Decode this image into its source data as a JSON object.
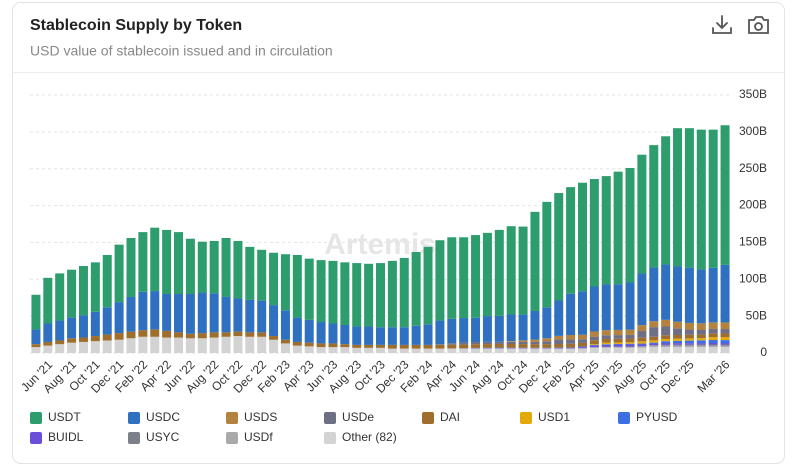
{
  "chart_data": {
    "type": "stacked_bar",
    "title": "Stablecoin Supply by Token",
    "subtitle": "USD value of stablecoin issued and in circulation",
    "watermark": "Artemis",
    "categories": [
      null,
      "Jun '21",
      null,
      "Aug '21",
      null,
      "Oct '21",
      null,
      "Dec '21",
      null,
      "Feb '22",
      null,
      "Apr '22",
      null,
      "Jun '22",
      null,
      "Aug '22",
      null,
      "Oct '22",
      null,
      "Dec '22",
      null,
      "Feb '23",
      null,
      "Apr '23",
      null,
      "Jun '23",
      null,
      "Aug '23",
      null,
      "Oct '23",
      null,
      "Dec '23",
      null,
      "Feb '24",
      null,
      "Apr '24",
      null,
      "Jun '24",
      null,
      "Aug '24",
      null,
      "Oct '24",
      null,
      "Dec '24",
      null,
      "Feb '25",
      null,
      "Apr '25",
      null,
      "Jun '25",
      null,
      "Aug '25",
      null,
      "Oct '25",
      null,
      "Dec '25",
      null,
      null,
      "Mar '26"
    ],
    "series": [
      {
        "name": "USDT",
        "color": "#2e9d6e",
        "values": [
          47,
          62,
          64,
          65,
          67,
          67,
          71,
          78,
          80,
          81,
          86,
          87,
          84,
          75,
          69,
          71,
          80,
          78,
          72,
          69,
          71,
          76,
          85,
          83,
          84,
          85,
          85,
          86,
          85,
          87,
          90,
          94,
          100,
          105,
          109,
          110.7,
          109.6,
          112.1,
          112.9,
          116.7,
          119.8,
          119.4,
          134.5,
          143,
          145.8,
          144.6,
          147.3,
          145.8,
          147,
          152.7,
          155.4,
          161.2,
          165.9,
          174,
          187.6,
          189.2,
          189.8,
          187.4,
          189.5
        ]
      },
      {
        "name": "USDC",
        "color": "#2f70c0",
        "values": [
          20,
          25,
          27,
          28,
          30,
          33,
          37,
          42,
          47,
          52,
          52,
          50,
          52,
          54,
          55,
          53,
          48,
          45,
          44,
          43,
          42,
          40,
          33,
          31,
          29,
          27,
          26,
          25,
          25,
          24,
          24,
          24,
          26,
          28,
          32,
          33,
          33,
          33,
          35,
          35,
          36,
          35,
          39,
          42,
          48,
          56,
          59,
          61,
          62,
          62,
          64,
          70,
          73,
          75,
          75,
          75,
          73,
          74,
          78
        ]
      },
      {
        "name": "USDS",
        "color": "#b3823f",
        "values": [
          0,
          0,
          0,
          0,
          0,
          0,
          0,
          0,
          0,
          0,
          0,
          0,
          0,
          0,
          0,
          0,
          0,
          0,
          0,
          0,
          0,
          0,
          0,
          0,
          0,
          0,
          0,
          0,
          0,
          0,
          0,
          0,
          0,
          0,
          0,
          0,
          0,
          0,
          0,
          0,
          1,
          2,
          3,
          4,
          5,
          6,
          6,
          7,
          7,
          7,
          7,
          8,
          8,
          9,
          9,
          9,
          9,
          9,
          9
        ]
      },
      {
        "name": "USDe",
        "color": "#6e6f84",
        "values": [
          0,
          0,
          0,
          0,
          0,
          0,
          0,
          0,
          0,
          0,
          0,
          0,
          0,
          0,
          0,
          0,
          0,
          0,
          0,
          0,
          0,
          0,
          0,
          0,
          0,
          0,
          0,
          0,
          0,
          0,
          0,
          0,
          0,
          0,
          1,
          2,
          3,
          3,
          3,
          3,
          3,
          3,
          3,
          4,
          6,
          6,
          5,
          5,
          5,
          5,
          5,
          9,
          13,
          12,
          9,
          7,
          6,
          6,
          6
        ]
      },
      {
        "name": "DAI",
        "color": "#a06e2c",
        "values": [
          4,
          5,
          5,
          6,
          6,
          7,
          8,
          9,
          9,
          9,
          10,
          9,
          7,
          6,
          7,
          7,
          6,
          6,
          6,
          6,
          5,
          5,
          5,
          5,
          5,
          5,
          4,
          4,
          4,
          4,
          5,
          5,
          5,
          5,
          5,
          5,
          5,
          5,
          5,
          5,
          5,
          5,
          5,
          5,
          5,
          5,
          5,
          5,
          5,
          5,
          5,
          5,
          5,
          5,
          5,
          5,
          5,
          5,
          5
        ]
      },
      {
        "name": "USD1",
        "color": "#e3a90a",
        "values": [
          0,
          0,
          0,
          0,
          0,
          0,
          0,
          0,
          0,
          0,
          0,
          0,
          0,
          0,
          0,
          0,
          0,
          0,
          0,
          0,
          0,
          0,
          0,
          0,
          0,
          0,
          0,
          0,
          0,
          0,
          0,
          0,
          0,
          0,
          0,
          0,
          0,
          0,
          0,
          0,
          0,
          0,
          0,
          0,
          0,
          0,
          0,
          1,
          2,
          2,
          2,
          3,
          3,
          3,
          3,
          3,
          3,
          4,
          4
        ]
      },
      {
        "name": "PYUSD",
        "color": "#3b6fe3",
        "values": [
          0,
          0,
          0,
          0,
          0,
          0,
          0,
          0,
          0,
          0,
          0,
          0,
          0,
          0,
          0,
          0,
          0,
          0,
          0,
          0,
          0,
          0,
          0,
          0,
          0,
          0,
          0,
          0,
          0,
          0,
          0,
          0,
          0,
          0,
          0,
          0,
          0,
          0.4,
          0.6,
          0.8,
          0.7,
          0.6,
          0.5,
          0.5,
          0.5,
          0.5,
          0.7,
          0.8,
          0.9,
          0.9,
          1,
          1.2,
          1.3,
          2.5,
          3,
          3.5,
          3.8,
          4,
          4
        ]
      },
      {
        "name": "BUIDL",
        "color": "#6a50d8",
        "values": [
          0,
          0,
          0,
          0,
          0,
          0,
          0,
          0,
          0,
          0,
          0,
          0,
          0,
          0,
          0,
          0,
          0,
          0,
          0,
          0,
          0,
          0,
          0,
          0,
          0,
          0,
          0,
          0,
          0,
          0,
          0,
          0,
          0,
          0,
          0,
          0.3,
          0.4,
          0.5,
          0.5,
          0.5,
          0.5,
          0.5,
          0.5,
          0.5,
          0.6,
          0.7,
          1.5,
          2.5,
          2.8,
          2.9,
          2.8,
          2.4,
          2.2,
          2.5,
          2.2,
          2,
          2,
          2.1,
          2
        ]
      },
      {
        "name": "USYC",
        "color": "#7b8089",
        "values": [
          0,
          0,
          0,
          0,
          0,
          0,
          0,
          0,
          0,
          0,
          0,
          0,
          0,
          0,
          0,
          0,
          0,
          0,
          0,
          0,
          0,
          0,
          0,
          0,
          0,
          0,
          0,
          0,
          0,
          0,
          0,
          0,
          0,
          0,
          0,
          0,
          0,
          0,
          0,
          0,
          0,
          0,
          0,
          0,
          0.1,
          0.2,
          0.3,
          0.4,
          0.5,
          0.5,
          0.6,
          0.7,
          0.8,
          1,
          1.2,
          1.3,
          1.4,
          1.5,
          1.5
        ]
      },
      {
        "name": "USDf",
        "color": "#aaaaaa",
        "values": [
          0,
          0,
          0,
          0,
          0,
          0,
          0,
          0,
          0,
          0,
          0,
          0,
          0,
          0,
          0,
          0,
          0,
          0,
          0,
          0,
          0,
          0,
          0,
          0,
          0,
          0,
          0,
          0,
          0,
          0,
          0,
          0,
          0,
          0,
          0,
          0,
          0,
          0,
          0,
          0,
          0,
          0,
          0,
          0,
          0,
          0,
          0.2,
          0.5,
          0.8,
          1,
          1.2,
          1.5,
          1.8,
          2,
          2,
          2,
          2,
          2,
          2
        ]
      },
      {
        "name": "Other (82)",
        "color": "#d3d3d3",
        "values": [
          8,
          10,
          12,
          14,
          15,
          16,
          17,
          18,
          20,
          22,
          22,
          21,
          21,
          20,
          20,
          21,
          22,
          23,
          22,
          22,
          18,
          13,
          10,
          9,
          8,
          8,
          8,
          7,
          7,
          7,
          6,
          6,
          6,
          6,
          6,
          6,
          6,
          6,
          6,
          6,
          6,
          6,
          6,
          6,
          6,
          6,
          6,
          7,
          7,
          7,
          7,
          7,
          8,
          8,
          8,
          8,
          8,
          8,
          8
        ]
      }
    ],
    "ylim": [
      0,
      350
    ],
    "yticks": [
      0,
      {
        "value": 50,
        "label": "50B"
      },
      {
        "value": 100,
        "label": "100B"
      },
      {
        "value": 150,
        "label": "150B"
      },
      {
        "value": 200,
        "label": "200B"
      },
      {
        "value": 250,
        "label": "250B"
      },
      {
        "value": 300,
        "label": "300B"
      },
      {
        "value": 350,
        "label": "350B"
      }
    ],
    "grid": true
  }
}
